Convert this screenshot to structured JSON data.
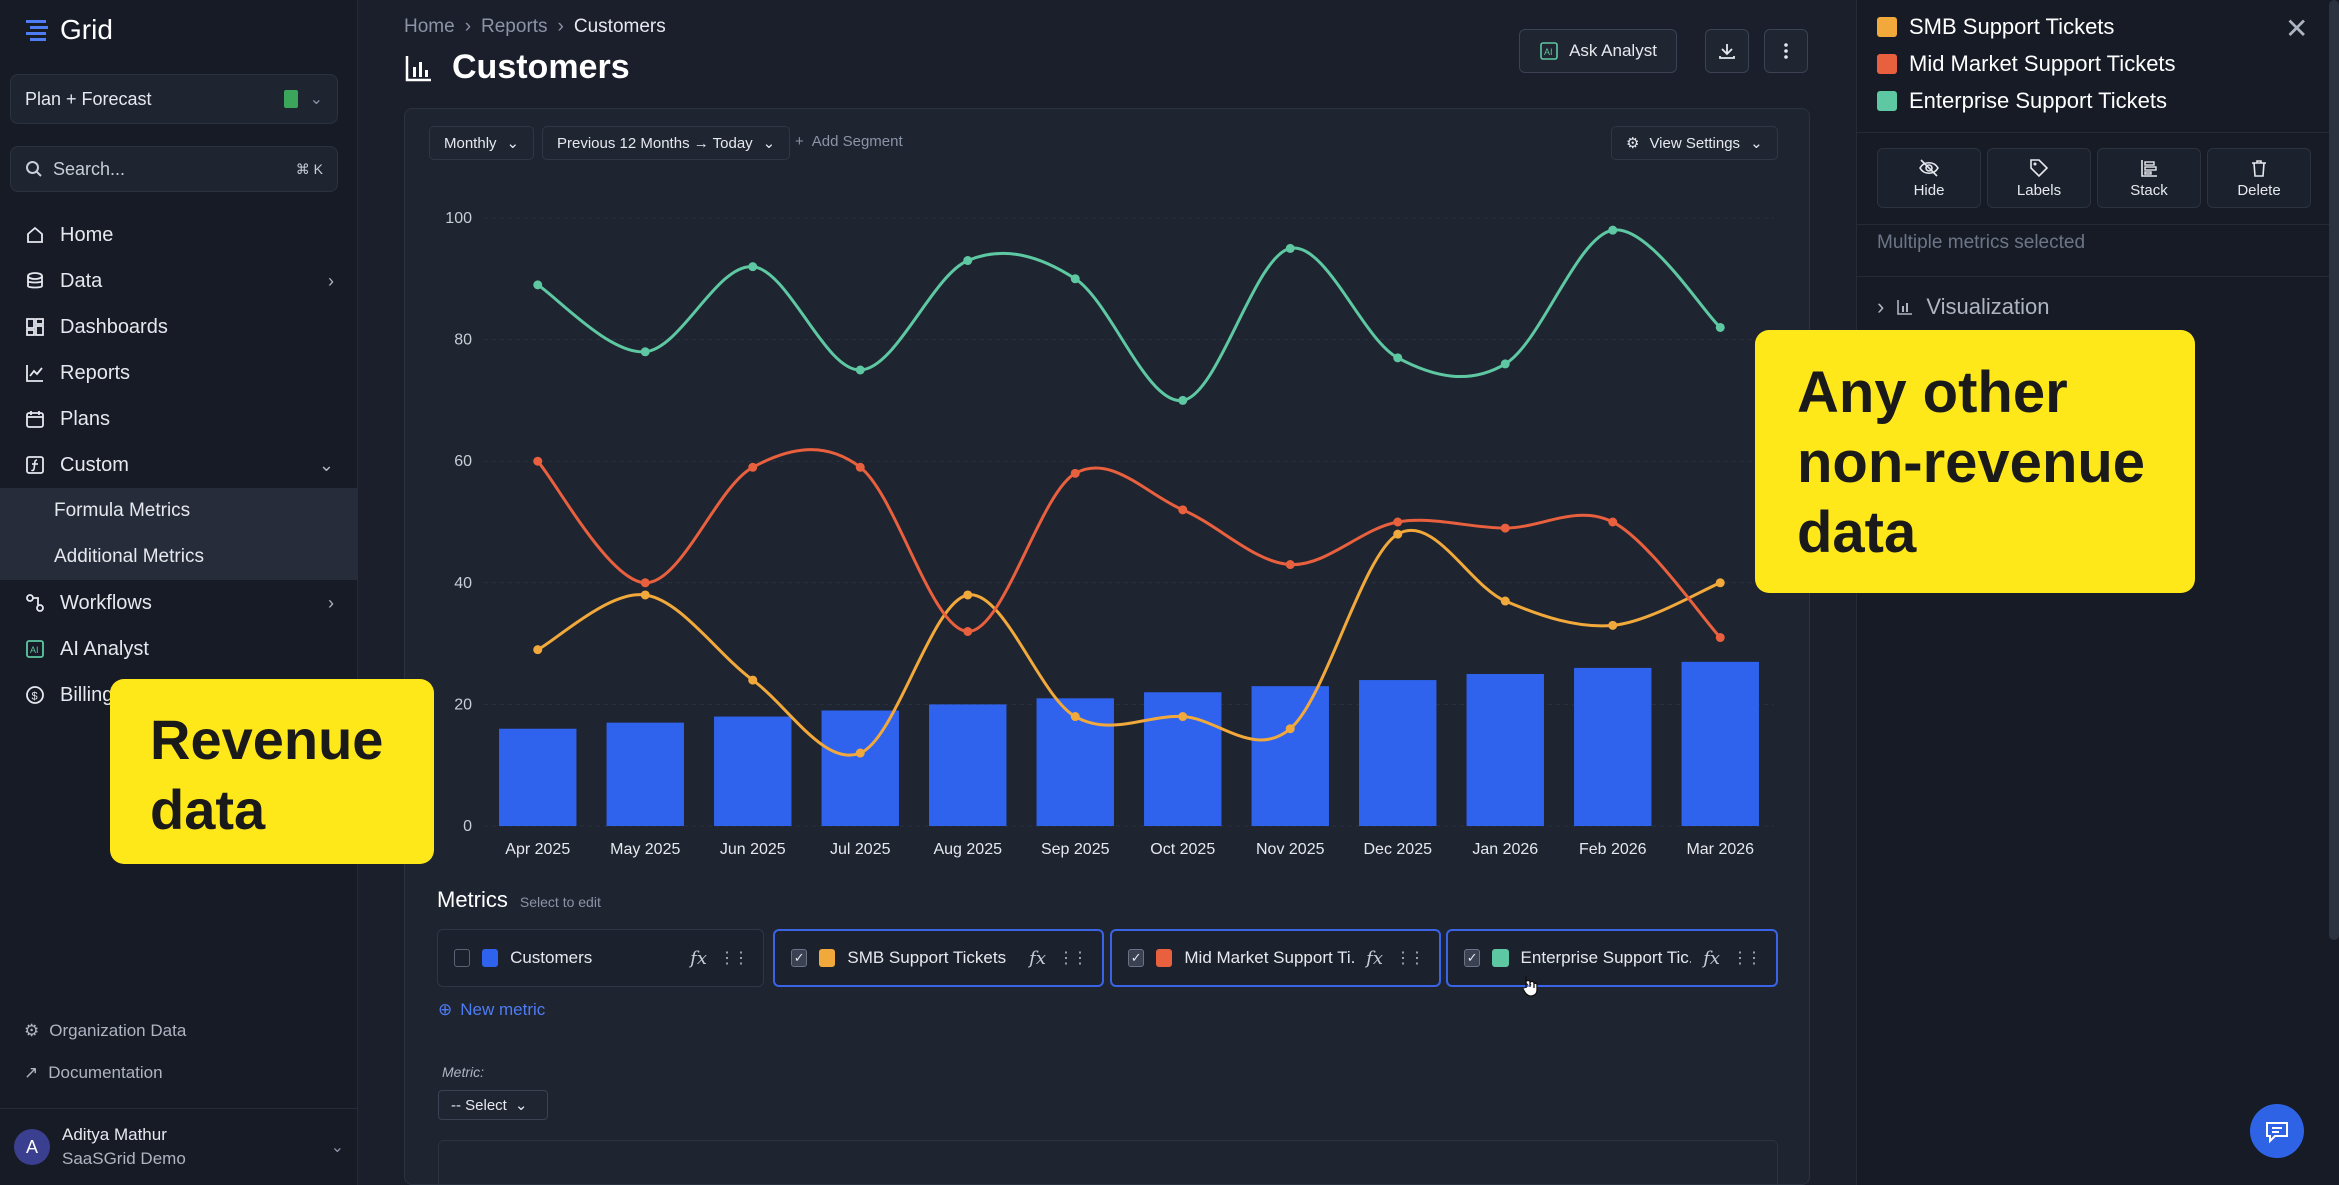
{
  "app": {
    "name": "Grid"
  },
  "sidebar": {
    "workspace": "Plan + Forecast",
    "search_placeholder": "Search...",
    "search_shortcut": "⌘ K",
    "items": [
      {
        "label": "Home",
        "icon": "home-icon"
      },
      {
        "label": "Data",
        "icon": "database-icon",
        "expand": "right"
      },
      {
        "label": "Dashboards",
        "icon": "dashboard-icon"
      },
      {
        "label": "Reports",
        "icon": "line-chart-icon"
      },
      {
        "label": "Plans",
        "icon": "calendar-icon"
      },
      {
        "label": "Custom",
        "icon": "formula-icon",
        "expand": "down"
      }
    ],
    "sub_items": [
      {
        "label": "Formula Metrics"
      },
      {
        "label": "Additional Metrics"
      }
    ],
    "items_after": [
      {
        "label": "Workflows",
        "icon": "workflow-icon",
        "expand": "right"
      },
      {
        "label": "AI Analyst",
        "icon": "ai-icon"
      },
      {
        "label": "Billing",
        "icon": "dollar-icon"
      }
    ],
    "bottom_links": [
      {
        "label": "Organization Data",
        "icon": "gear-icon"
      },
      {
        "label": "Documentation",
        "icon": "external-link-icon"
      }
    ],
    "user": {
      "initial": "A",
      "name": "Aditya Mathur",
      "org": "SaaSGrid Demo"
    }
  },
  "header": {
    "breadcrumb": [
      "Home",
      "Reports",
      "Customers"
    ],
    "title": "Customers",
    "ask_label": "Ask Analyst"
  },
  "toolbar": {
    "granularity": "Monthly",
    "range": "Previous 12 Months → Today",
    "add_segment": "Add Segment",
    "view_settings": "View Settings"
  },
  "chart_data": {
    "type": "bar+line",
    "categories": [
      "Apr 2025",
      "May 2025",
      "Jun 2025",
      "Jul 2025",
      "Aug 2025",
      "Sep 2025",
      "Oct 2025",
      "Nov 2025",
      "Dec 2025",
      "Jan 2026",
      "Feb 2026",
      "Mar 2026"
    ],
    "ylim": [
      0,
      100
    ],
    "yticks": [
      0,
      20,
      40,
      60,
      80,
      100
    ],
    "grid": true,
    "series": [
      {
        "name": "Customers",
        "type": "bar",
        "color": "#2f63ee",
        "values": [
          16,
          17,
          18,
          19,
          20,
          21,
          22,
          23,
          24,
          25,
          26,
          27
        ]
      },
      {
        "name": "SMB Support Tickets",
        "type": "line",
        "color": "#f2a93b",
        "values": [
          29,
          38,
          24,
          12,
          38,
          18,
          18,
          16,
          48,
          37,
          33,
          40
        ]
      },
      {
        "name": "Mid Market Support Tickets",
        "type": "line",
        "color": "#e9603e",
        "values": [
          60,
          40,
          59,
          59,
          32,
          58,
          52,
          43,
          50,
          49,
          50,
          31
        ]
      },
      {
        "name": "Enterprise Support Tickets",
        "type": "line",
        "color": "#5ec8a2",
        "values": [
          89,
          78,
          92,
          75,
          93,
          90,
          70,
          95,
          77,
          76,
          98,
          82
        ]
      }
    ]
  },
  "metrics": {
    "title": "Metrics",
    "hint": "Select to edit",
    "chips": [
      {
        "label": "Customers",
        "color": "#2f63ee",
        "checked": false,
        "selected": false
      },
      {
        "label": "SMB Support Tickets",
        "color": "#f2a93b",
        "checked": true,
        "selected": true
      },
      {
        "label": "Mid Market Support Ti...",
        "color": "#e9603e",
        "checked": true,
        "selected": true
      },
      {
        "label": "Enterprise Support Tic...",
        "color": "#5ec8a2",
        "checked": true,
        "selected": true
      }
    ],
    "new_metric": "New metric",
    "metric_field_label": "Metric:",
    "metric_select": "-- Select"
  },
  "panel": {
    "legend": [
      {
        "label": "SMB Support Tickets",
        "color": "#f2a93b"
      },
      {
        "label": "Mid Market Support Tickets",
        "color": "#e9603e"
      },
      {
        "label": "Enterprise Support Tickets",
        "color": "#5ec8a2"
      }
    ],
    "actions": [
      "Hide",
      "Labels",
      "Stack",
      "Delete"
    ],
    "multi_selected": "Multiple metrics selected",
    "visualization": "Visualization"
  },
  "callouts": {
    "revenue": "Revenue data",
    "other": "Any other non-revenue data"
  }
}
